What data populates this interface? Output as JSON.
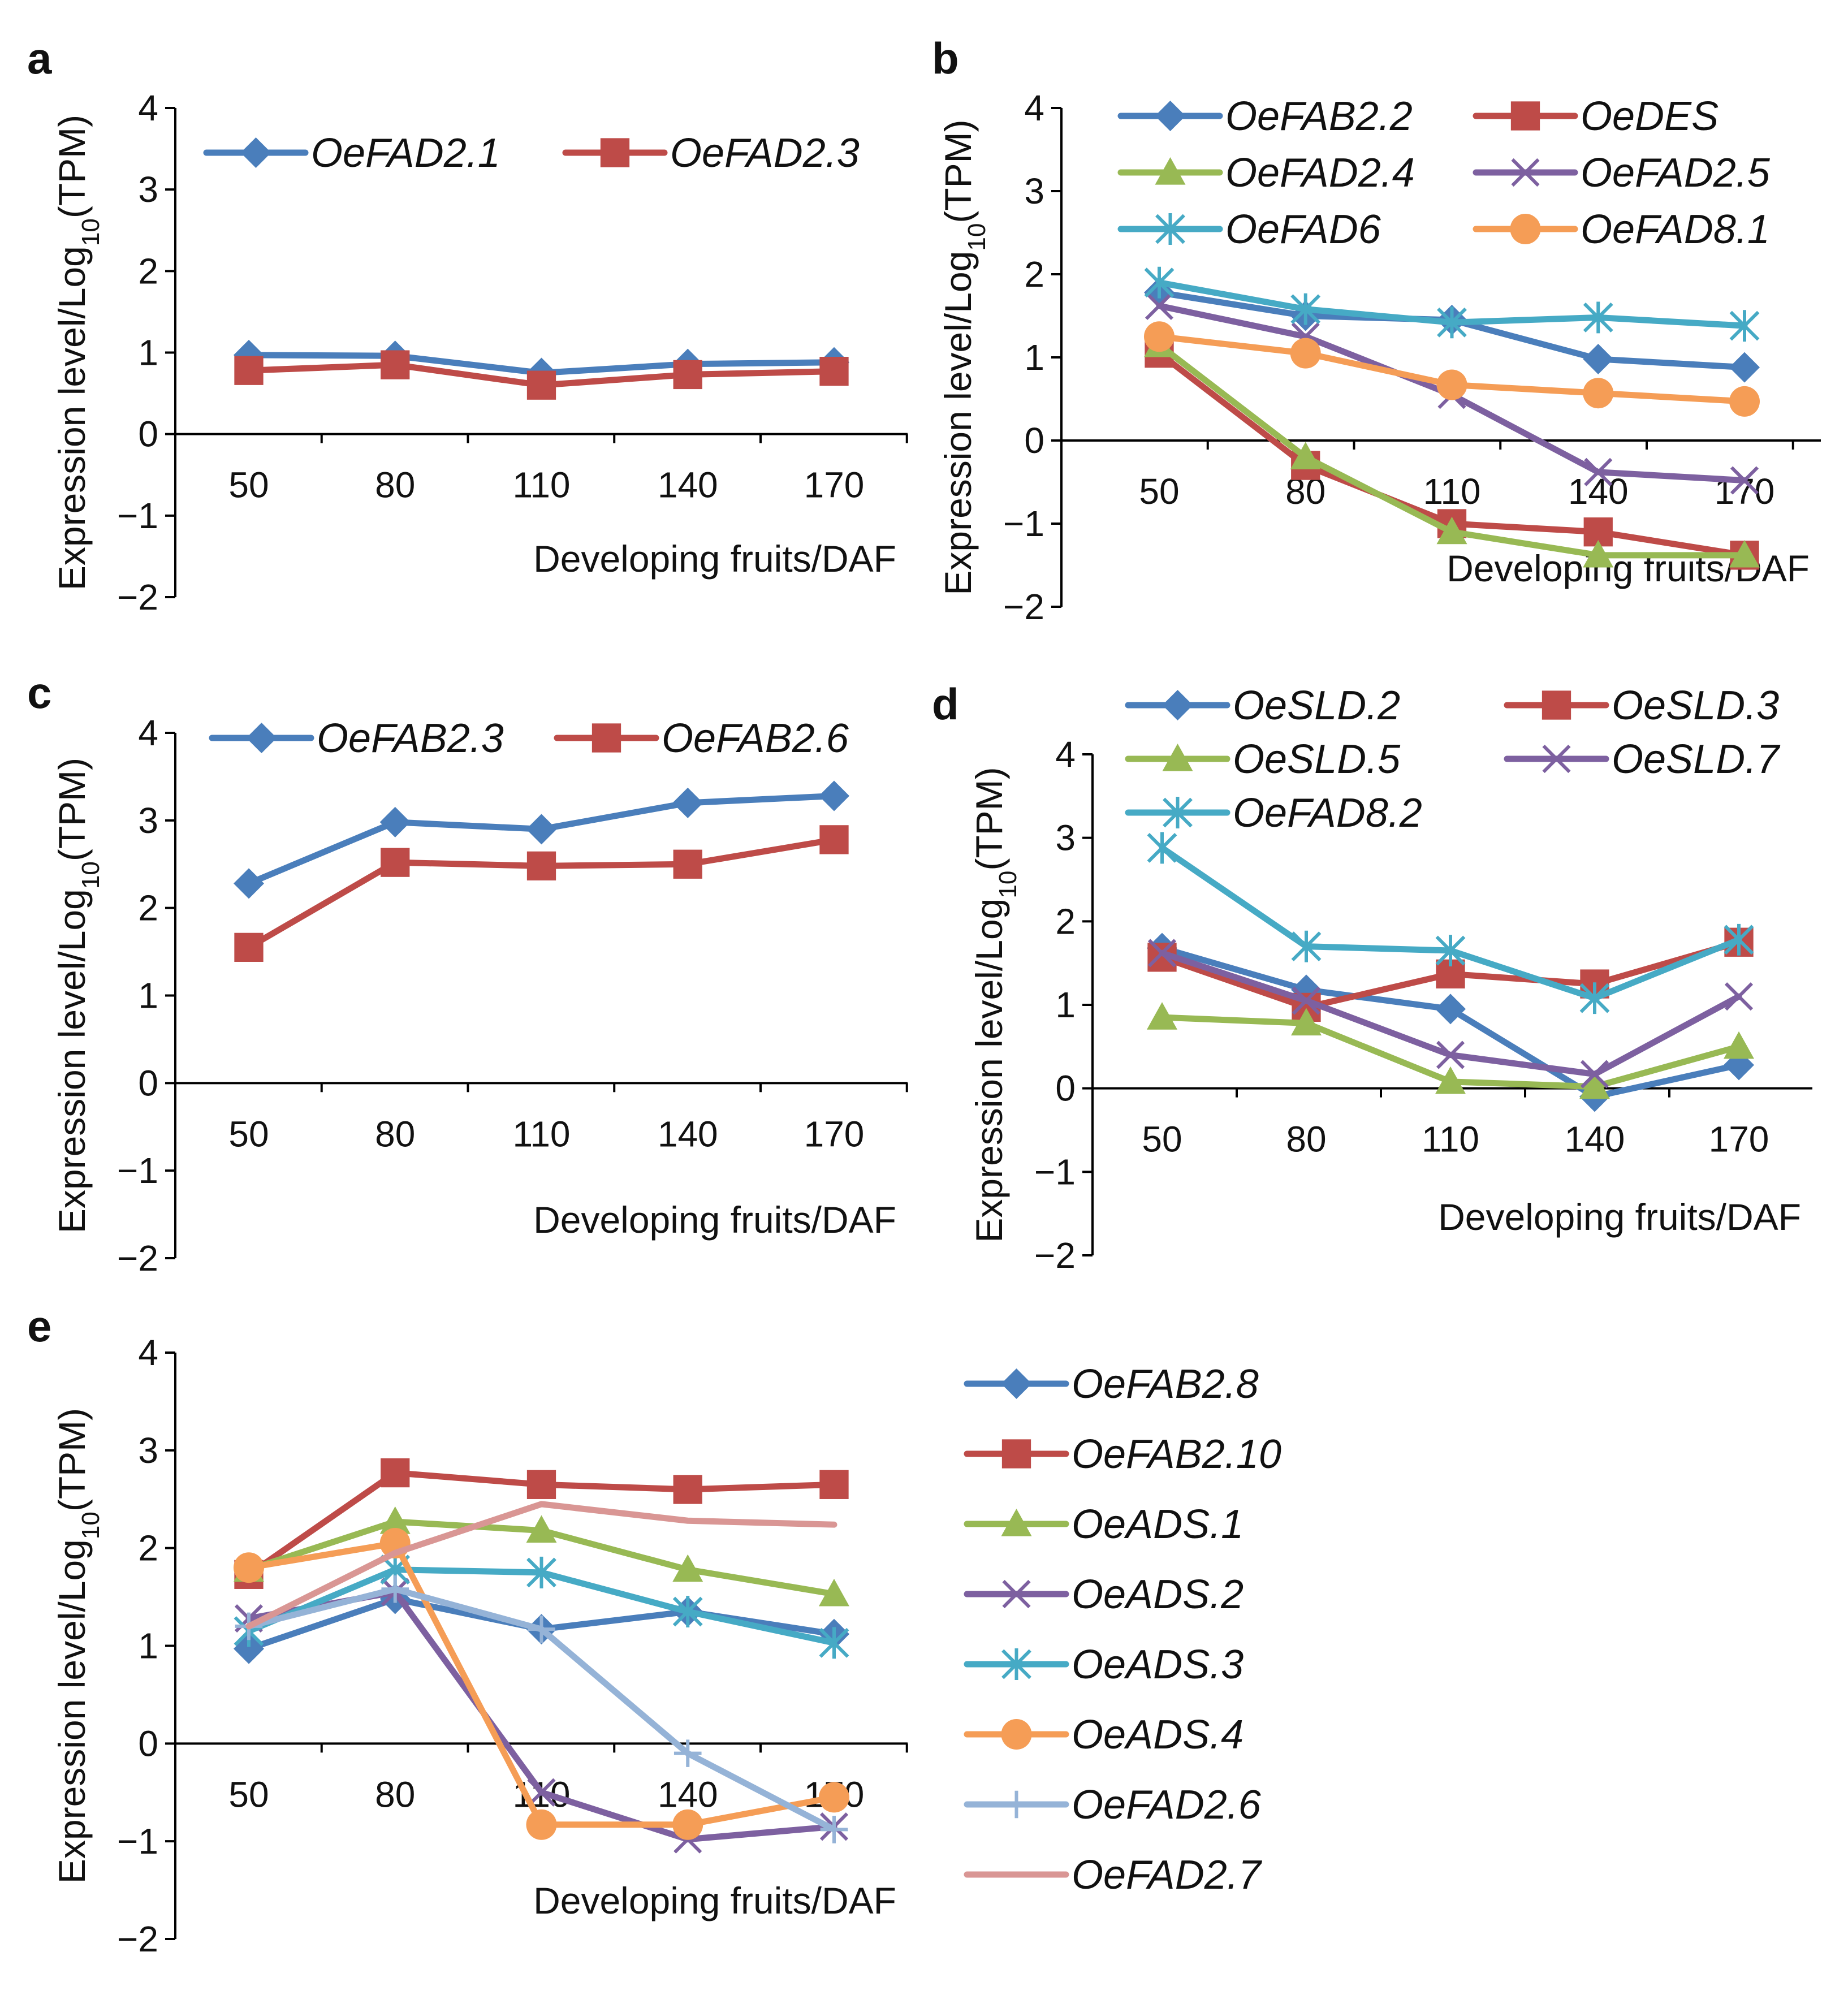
{
  "figure": {
    "panel_letters": [
      "a",
      "b",
      "c",
      "d",
      "e"
    ],
    "shared_labels": {
      "xlabel": "Developing fruits/DAF",
      "ylabel_prefix": "Expression level/Log",
      "ylabel_subscript": "10",
      "ylabel_suffix": "(TPM)"
    }
  },
  "chart_data": [
    {
      "panel": "a",
      "type": "line",
      "categories": [
        "50",
        "80",
        "110",
        "140",
        "170"
      ],
      "yticks": [
        "4",
        "3",
        "2",
        "1",
        "0",
        "−1",
        "−2"
      ],
      "ylim": [
        -2,
        4
      ],
      "xlabel": "Developing fruits/DAF",
      "ylabel": "Expression level/Log10(TPM)",
      "legend_position": "top",
      "series": [
        {
          "name": "OeFAD2.1",
          "color": "#4a7ebb",
          "marker": "diamond",
          "values": [
            0.97,
            0.96,
            0.75,
            0.86,
            0.88
          ]
        },
        {
          "name": "OeFAD2.3",
          "color": "#be4b48",
          "marker": "square",
          "values": [
            0.78,
            0.85,
            0.6,
            0.73,
            0.77
          ]
        }
      ]
    },
    {
      "panel": "b",
      "type": "line",
      "categories": [
        "50",
        "80",
        "110",
        "140",
        "170"
      ],
      "yticks": [
        "4",
        "3",
        "2",
        "1",
        "0",
        "−1",
        "−2"
      ],
      "ylim": [
        -2,
        4
      ],
      "xlabel": "Developing fruits/DAF",
      "ylabel": "Expression level/Log10(TPM)",
      "legend_position": "top",
      "series": [
        {
          "name": "OeFAB2.2",
          "color": "#4a7ebb",
          "marker": "diamond",
          "values": [
            1.78,
            1.5,
            1.45,
            0.98,
            0.88
          ]
        },
        {
          "name": "OeDES",
          "color": "#be4b48",
          "marker": "square",
          "values": [
            1.05,
            -0.3,
            -1.0,
            -1.1,
            -1.38
          ]
        },
        {
          "name": "OeFAD2.4",
          "color": "#98b954",
          "marker": "triangle",
          "values": [
            1.15,
            -0.2,
            -1.1,
            -1.38,
            -1.38
          ]
        },
        {
          "name": "OeFAD2.5",
          "color": "#7d60a0",
          "marker": "x",
          "values": [
            1.62,
            1.25,
            0.55,
            -0.38,
            -0.48
          ]
        },
        {
          "name": "OeFAD6",
          "color": "#46aac5",
          "marker": "asterisk",
          "values": [
            1.9,
            1.58,
            1.42,
            1.48,
            1.38
          ]
        },
        {
          "name": "OeFAD8.1",
          "color": "#f59d56",
          "marker": "circle",
          "values": [
            1.25,
            1.05,
            0.67,
            0.57,
            0.47
          ]
        }
      ]
    },
    {
      "panel": "c",
      "type": "line",
      "categories": [
        "50",
        "80",
        "110",
        "140",
        "170"
      ],
      "yticks": [
        "4",
        "3",
        "2",
        "1",
        "0",
        "−1",
        "−2"
      ],
      "ylim": [
        -2,
        4
      ],
      "xlabel": "Developing fruits/DAF",
      "ylabel": "Expression level/Log10(TPM)",
      "legend_position": "top",
      "series": [
        {
          "name": "OeFAB2.3",
          "color": "#4a7ebb",
          "marker": "diamond",
          "values": [
            2.28,
            2.98,
            2.9,
            3.2,
            3.28
          ]
        },
        {
          "name": "OeFAB2.6",
          "color": "#be4b48",
          "marker": "square",
          "values": [
            1.55,
            2.52,
            2.48,
            2.5,
            2.78
          ]
        }
      ]
    },
    {
      "panel": "d",
      "type": "line",
      "categories": [
        "50",
        "80",
        "110",
        "140",
        "170"
      ],
      "yticks": [
        "4",
        "3",
        "2",
        "1",
        "0",
        "−1",
        "−2"
      ],
      "ylim": [
        -2,
        4
      ],
      "xlabel": "Developing fruits/DAF",
      "ylabel": "Expression level/Log10(TPM)",
      "legend_position": "top",
      "series": [
        {
          "name": "OeSLD.2",
          "color": "#4a7ebb",
          "marker": "diamond",
          "values": [
            1.68,
            1.18,
            0.95,
            -0.1,
            0.28
          ]
        },
        {
          "name": "OeSLD.3",
          "color": "#be4b48",
          "marker": "square",
          "values": [
            1.57,
            0.97,
            1.37,
            1.25,
            1.75
          ]
        },
        {
          "name": "OeSLD.5",
          "color": "#98b954",
          "marker": "triangle",
          "values": [
            0.85,
            0.78,
            0.08,
            0.02,
            0.5
          ]
        },
        {
          "name": "OeSLD.7",
          "color": "#7d60a0",
          "marker": "x",
          "values": [
            1.62,
            1.05,
            0.4,
            0.17,
            1.1
          ]
        },
        {
          "name": "OeFAD8.2",
          "color": "#46aac5",
          "marker": "asterisk",
          "values": [
            2.88,
            1.7,
            1.65,
            1.08,
            1.78
          ]
        }
      ]
    },
    {
      "panel": "e",
      "type": "line",
      "categories": [
        "50",
        "80",
        "110",
        "140",
        "170"
      ],
      "yticks": [
        "4",
        "3",
        "2",
        "1",
        "0",
        "−1",
        "−2"
      ],
      "ylim": [
        -2,
        4
      ],
      "xlabel": "Developing fruits/DAF",
      "ylabel": "Expression level/Log10(TPM)",
      "legend_position": "right",
      "series": [
        {
          "name": "OeFAB2.8",
          "color": "#4a7ebb",
          "marker": "diamond",
          "values": [
            0.97,
            1.48,
            1.17,
            1.35,
            1.12
          ]
        },
        {
          "name": "OeFAB2.10",
          "color": "#be4b48",
          "marker": "square",
          "values": [
            1.73,
            2.77,
            2.65,
            2.6,
            2.65
          ]
        },
        {
          "name": "OeADS.1",
          "color": "#98b954",
          "marker": "triangle",
          "values": [
            1.78,
            2.27,
            2.18,
            1.78,
            1.53
          ]
        },
        {
          "name": "OeADS.2",
          "color": "#7d60a0",
          "marker": "x",
          "values": [
            1.28,
            1.55,
            -0.5,
            -0.98,
            -0.85
          ]
        },
        {
          "name": "OeADS.3",
          "color": "#46aac5",
          "marker": "asterisk",
          "values": [
            1.15,
            1.78,
            1.75,
            1.35,
            1.03
          ]
        },
        {
          "name": "OeADS.4",
          "color": "#f59d56",
          "marker": "circle",
          "values": [
            1.8,
            2.05,
            -0.83,
            -0.83,
            -0.55
          ]
        },
        {
          "name": "OeFAD2.6",
          "color": "#95b3d7",
          "marker": "plus",
          "values": [
            1.2,
            1.58,
            1.17,
            -0.1,
            -0.88
          ]
        },
        {
          "name": "OeFAD2.7",
          "color": "#d99694",
          "marker": "none",
          "values": [
            1.2,
            1.95,
            2.45,
            2.28,
            2.24
          ]
        }
      ]
    }
  ]
}
